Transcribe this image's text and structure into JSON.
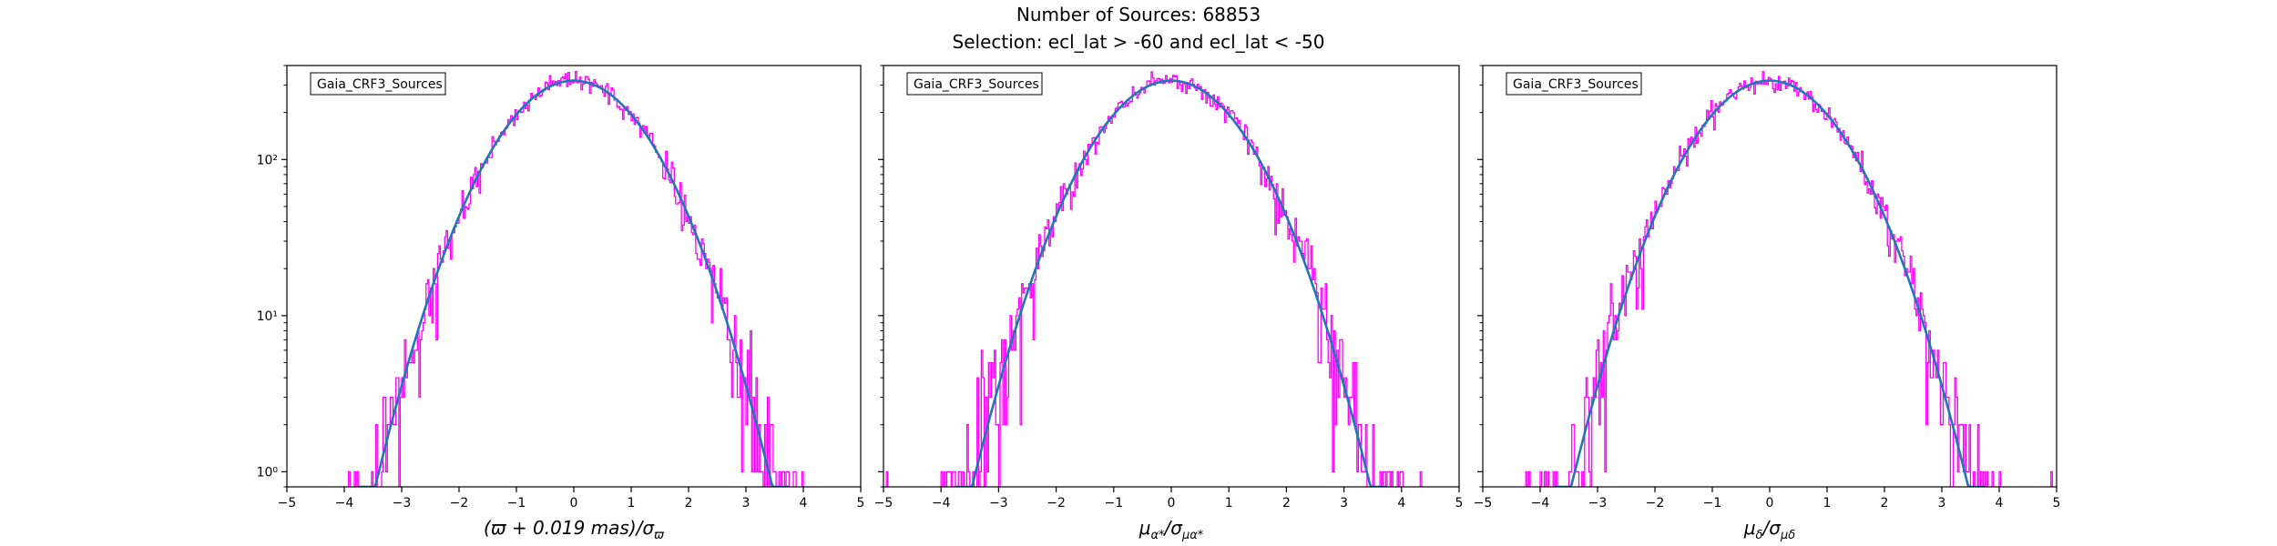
{
  "figure": {
    "title_line1": "Number of Sources: 68853",
    "title_line2": "Selection: ecl_lat > -60 and ecl_lat < -50"
  },
  "colors": {
    "histogram": "#ff00ff",
    "fit": "#1f77b4",
    "axes": "#000000"
  },
  "chart_data": [
    {
      "type": "line",
      "yscale": "log",
      "xlim": [
        -5,
        5
      ],
      "ylim": [
        0.8,
        400
      ],
      "xticks": [
        -5,
        -4,
        -3,
        -2,
        -1,
        0,
        1,
        2,
        3,
        4,
        5
      ],
      "yticks": [
        1,
        10,
        100
      ],
      "ytick_labels": [
        "10⁰",
        "10¹",
        "10²"
      ],
      "xlabel_parts": [
        "(ϖ + 0.019 ",
        "mas",
        ")/σ",
        "ϖ"
      ],
      "legend": "Gaia_CRF3_Sources",
      "legend_position": "top-left",
      "series": [
        {
          "kind": "histogram-steps",
          "x": [
            -4.5,
            -4,
            -3.5,
            -3,
            -2.5,
            -2,
            -1.5,
            -1,
            -0.5,
            0,
            0.5,
            1,
            1.5,
            2,
            2.5,
            3,
            3.5
          ],
          "values": [
            1,
            1,
            1.5,
            5,
            20,
            58,
            130,
            220,
            300,
            320,
            300,
            220,
            130,
            58,
            20,
            5,
            1.5
          ]
        },
        {
          "kind": "fit",
          "peak": 320,
          "sigma": 1.0,
          "x": [
            -3.7,
            -3,
            -2,
            -1,
            0,
            1,
            2,
            3,
            3.7
          ],
          "values": [
            0.82,
            3.55,
            43.3,
            194,
            320,
            194,
            43.3,
            3.55,
            0.82
          ]
        }
      ]
    },
    {
      "type": "line",
      "yscale": "log",
      "xlim": [
        -5,
        5
      ],
      "ylim": [
        0.8,
        400
      ],
      "xticks": [
        -5,
        -4,
        -3,
        -2,
        -1,
        0,
        1,
        2,
        3,
        4,
        5
      ],
      "yticks": [
        1,
        10,
        100
      ],
      "xlabel_parts": [
        "μ",
        "α*",
        "/σ",
        "μα*"
      ],
      "legend": "Gaia_CRF3_Sources",
      "legend_position": "top-left",
      "series": [
        {
          "kind": "histogram-steps",
          "x": [
            -4.5,
            -4,
            -3.5,
            -3,
            -2.5,
            -2,
            -1.5,
            -1,
            -0.5,
            0,
            0.5,
            1,
            1.5,
            2,
            2.5,
            3,
            3.5
          ],
          "values": [
            1,
            1,
            1.5,
            5,
            20,
            58,
            130,
            220,
            300,
            320,
            300,
            220,
            130,
            58,
            20,
            5,
            1.5
          ]
        },
        {
          "kind": "fit",
          "peak": 320,
          "sigma": 1.0,
          "x": [
            -3.7,
            -3,
            -2,
            -1,
            0,
            1,
            2,
            3,
            3.7
          ],
          "values": [
            0.82,
            3.55,
            43.3,
            194,
            320,
            194,
            43.3,
            3.55,
            0.82
          ]
        }
      ]
    },
    {
      "type": "line",
      "yscale": "log",
      "xlim": [
        -5,
        5
      ],
      "ylim": [
        0.8,
        400
      ],
      "xticks": [
        -5,
        -4,
        -3,
        -2,
        -1,
        0,
        1,
        2,
        3,
        4,
        5
      ],
      "yticks": [
        1,
        10,
        100
      ],
      "xlabel_parts": [
        "μ",
        "δ",
        "/σ",
        "μδ"
      ],
      "legend": "Gaia_CRF3_Sources",
      "legend_position": "top-left",
      "series": [
        {
          "kind": "histogram-steps",
          "x": [
            -4.5,
            -4,
            -3.5,
            -3,
            -2.5,
            -2,
            -1.5,
            -1,
            -0.5,
            0,
            0.5,
            1,
            1.5,
            2,
            2.5,
            3,
            3.5
          ],
          "values": [
            1,
            1,
            1.5,
            5,
            20,
            58,
            130,
            220,
            300,
            320,
            300,
            220,
            130,
            58,
            20,
            5,
            1.5
          ]
        },
        {
          "kind": "fit",
          "peak": 320,
          "sigma": 1.0,
          "x": [
            -3.7,
            -3,
            -2,
            -1,
            0,
            1,
            2,
            3,
            3.7
          ],
          "values": [
            0.82,
            3.55,
            43.3,
            194,
            320,
            194,
            43.3,
            3.55,
            0.82
          ]
        }
      ]
    }
  ]
}
